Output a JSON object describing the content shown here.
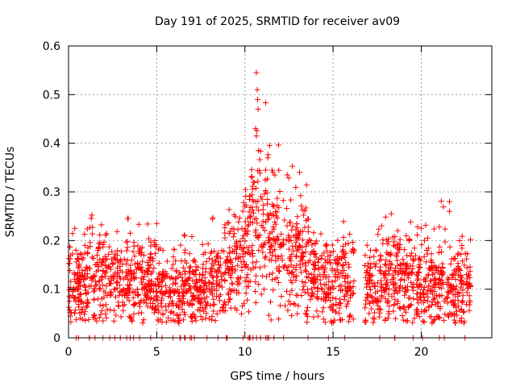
{
  "chart_data": {
    "type": "scatter",
    "title": "Day 191 of 2025, SRMTID for receiver av09",
    "xlabel": "GPS time / hours",
    "ylabel": "SRMTID / TECUs",
    "xlim": [
      0,
      24.0
    ],
    "ylim": [
      0,
      0.6
    ],
    "x_ticks": [
      0,
      5,
      10,
      15,
      20
    ],
    "y_ticks": [
      0,
      0.1,
      0.2,
      0.3,
      0.4,
      0.5,
      0.6
    ],
    "x_tick_labels": [
      "0",
      "5",
      "10",
      "15",
      "20"
    ],
    "y_tick_labels": [
      "0",
      "0.1",
      "0.2",
      "0.3",
      "0.4",
      "0.5",
      "0.6"
    ],
    "grid": true,
    "marker": "+",
    "color": "#ff0000",
    "x_range_data": [
      0,
      22.8
    ],
    "gap_hours": [
      16.2,
      16.8
    ],
    "series": [
      {
        "name": "SRMTID",
        "profile": [
          {
            "x": 0.0,
            "y": 0.11
          },
          {
            "x": 1.0,
            "y": 0.12
          },
          {
            "x": 3.0,
            "y": 0.115
          },
          {
            "x": 5.0,
            "y": 0.105
          },
          {
            "x": 6.0,
            "y": 0.095
          },
          {
            "x": 7.5,
            "y": 0.1
          },
          {
            "x": 9.0,
            "y": 0.13
          },
          {
            "x": 10.0,
            "y": 0.16
          },
          {
            "x": 10.6,
            "y": 0.25
          },
          {
            "x": 11.2,
            "y": 0.22
          },
          {
            "x": 12.5,
            "y": 0.16
          },
          {
            "x": 13.3,
            "y": 0.18
          },
          {
            "x": 14.0,
            "y": 0.13
          },
          {
            "x": 16.0,
            "y": 0.11
          },
          {
            "x": 17.0,
            "y": 0.11
          },
          {
            "x": 18.5,
            "y": 0.135
          },
          {
            "x": 20.0,
            "y": 0.115
          },
          {
            "x": 21.5,
            "y": 0.11
          },
          {
            "x": 22.8,
            "y": 0.11
          }
        ],
        "peaks": [
          {
            "x": 10.65,
            "y": 0.545
          },
          {
            "x": 10.7,
            "y": 0.51
          },
          {
            "x": 10.72,
            "y": 0.49
          },
          {
            "x": 10.75,
            "y": 0.47
          },
          {
            "x": 10.6,
            "y": 0.43
          },
          {
            "x": 10.65,
            "y": 0.415
          },
          {
            "x": 11.4,
            "y": 0.395
          },
          {
            "x": 11.3,
            "y": 0.37
          },
          {
            "x": 12.4,
            "y": 0.335
          },
          {
            "x": 13.1,
            "y": 0.34
          },
          {
            "x": 21.6,
            "y": 0.28
          },
          {
            "x": 21.6,
            "y": 0.26
          },
          {
            "x": 5.0,
            "y": 0.235
          },
          {
            "x": 3.5,
            "y": 0.215
          },
          {
            "x": 18.3,
            "y": 0.255
          }
        ]
      }
    ]
  }
}
